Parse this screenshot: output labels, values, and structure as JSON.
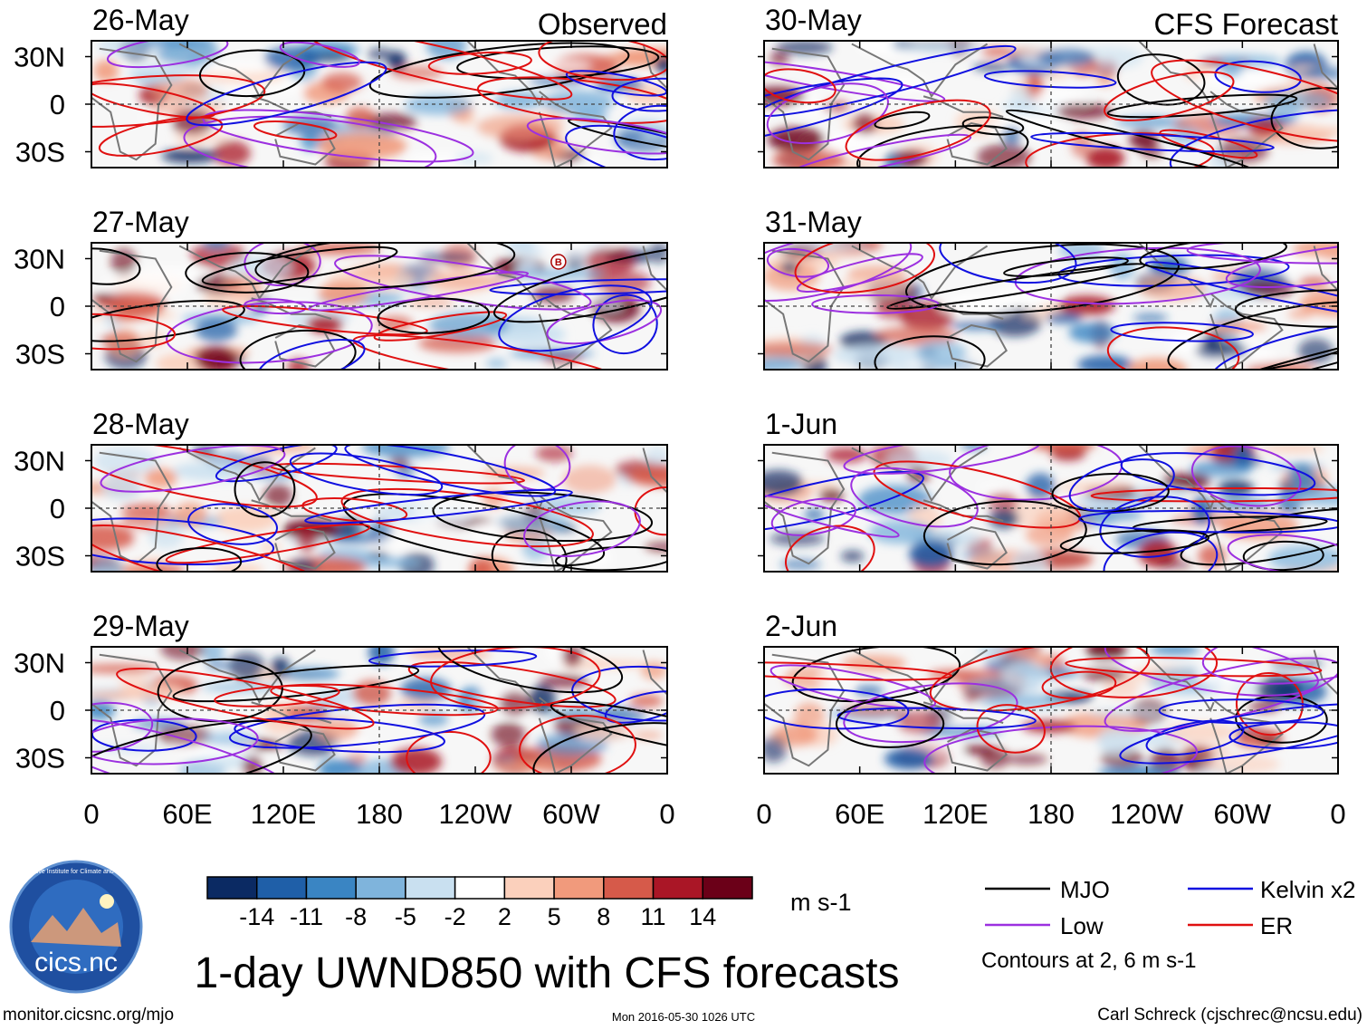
{
  "title": "1-day UWND850 with CFS forecasts",
  "columns": {
    "left_title": "Observed",
    "right_title": "CFS Forecast"
  },
  "chart_data": {
    "type": "heatmap",
    "variable": "850-hPa zonal wind anomaly",
    "panels_left": [
      {
        "date": "26-May"
      },
      {
        "date": "27-May"
      },
      {
        "date": "28-May"
      },
      {
        "date": "29-May"
      }
    ],
    "panels_right": [
      {
        "date": "30-May"
      },
      {
        "date": "31-May"
      },
      {
        "date": "1-Jun"
      },
      {
        "date": "2-Jun"
      }
    ],
    "y_ticks": [
      "30N",
      "0",
      "30S"
    ],
    "y_values": [
      30,
      0,
      -30
    ],
    "ylim": [
      -40,
      40
    ],
    "x_ticks": [
      "0",
      "60E",
      "120E",
      "180",
      "120W",
      "60W",
      "0"
    ],
    "x_values": [
      0,
      60,
      120,
      180,
      240,
      300,
      360
    ],
    "xlim": [
      0,
      360
    ],
    "colorbar": {
      "levels": [
        "-14",
        "-11",
        "-8",
        "-5",
        "-2",
        "2",
        "5",
        "8",
        "11",
        "14"
      ],
      "colors": [
        "#0b2a63",
        "#1f5fa8",
        "#3a85c3",
        "#7fb4dc",
        "#c9e0f0",
        "#ffffff",
        "#fbd0bc",
        "#f19a7c",
        "#d65a4a",
        "#aa1626",
        "#6b0018"
      ],
      "units": "m s-1"
    },
    "legend": {
      "entries": [
        {
          "label": "MJO",
          "color": "#000000"
        },
        {
          "label": "Kelvin x2",
          "color": "#1010e0"
        },
        {
          "label": "Low",
          "color": "#9c30e0"
        },
        {
          "label": "ER",
          "color": "#e01010"
        }
      ],
      "note": "Contours at 2, 6 m s-1"
    },
    "annotation_marker": "B"
  },
  "footer": {
    "url": "monitor.cicsnc.org/mjo",
    "timestamp": "Mon 2016-05-30 1026 UTC",
    "author": "Carl Schreck (cjschrec@ncsu.edu)"
  },
  "logo": {
    "text": "cics.nc",
    "arc_text": "Cooperative Institute for Climate and Satellites"
  }
}
